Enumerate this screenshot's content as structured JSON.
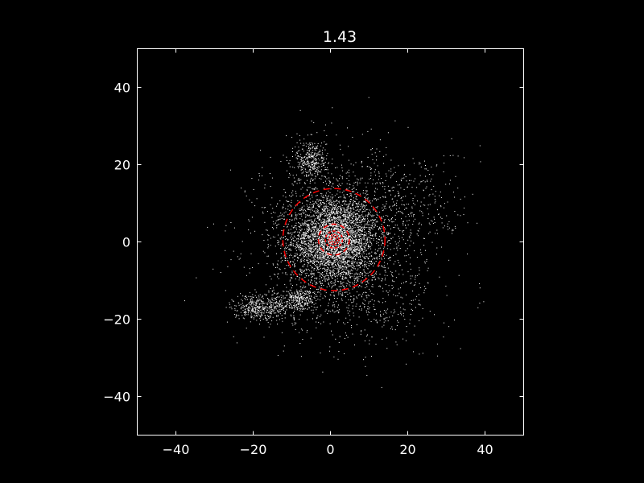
{
  "chart_data": {
    "type": "scatter",
    "title": "1.43",
    "xlabel": "",
    "ylabel": "",
    "xlim": [
      -50,
      50
    ],
    "ylim": [
      -50,
      50
    ],
    "xticks": [
      -40,
      -20,
      0,
      20,
      40
    ],
    "yticks": [
      -40,
      -20,
      0,
      20,
      40
    ],
    "xtick_labels": [
      "−40",
      "−20",
      "0",
      "20",
      "40"
    ],
    "ytick_labels": [
      "−40",
      "−20",
      "0",
      "20",
      "40"
    ],
    "grid": false,
    "background_color": "#000000",
    "point_color": "#ffffff",
    "circle_color": "#ff0000",
    "series": [
      {
        "kind": "points",
        "clusters": [
          {
            "cx": 1.0,
            "cy": 0.5,
            "sx": 5.5,
            "sy": 5.5,
            "n": 3200
          },
          {
            "cx": 2.0,
            "cy": 1.0,
            "sx": 11.0,
            "sy": 11.0,
            "n": 1500
          },
          {
            "cx": -5.0,
            "cy": 21.0,
            "sx": 2.0,
            "sy": 3.0,
            "n": 350
          },
          {
            "cx": -20.0,
            "cy": -17.0,
            "sx": 2.5,
            "sy": 1.5,
            "n": 250
          },
          {
            "cx": -8.0,
            "cy": -15.0,
            "sx": 2.0,
            "sy": 1.5,
            "n": 250
          },
          {
            "cx": -14.0,
            "cy": -16.5,
            "sx": 4.0,
            "sy": 2.0,
            "n": 250
          },
          {
            "cx": 20.0,
            "cy": 10.0,
            "sx": 8.0,
            "sy": 7.0,
            "n": 300
          },
          {
            "cx": 10.0,
            "cy": -15.0,
            "sx": 9.0,
            "sy": 6.0,
            "n": 300
          }
        ]
      },
      {
        "kind": "circles",
        "circles": [
          {
            "cx": 1.0,
            "cy": 0.5,
            "r": 0.7
          },
          {
            "cx": 1.0,
            "cy": 0.5,
            "r": 1.3
          },
          {
            "cx": 1.0,
            "cy": 0.5,
            "r": 2.2
          },
          {
            "cx": 1.0,
            "cy": 0.5,
            "r": 4.0
          },
          {
            "cx": 1.0,
            "cy": 0.5,
            "r": 13.2
          }
        ]
      }
    ]
  }
}
